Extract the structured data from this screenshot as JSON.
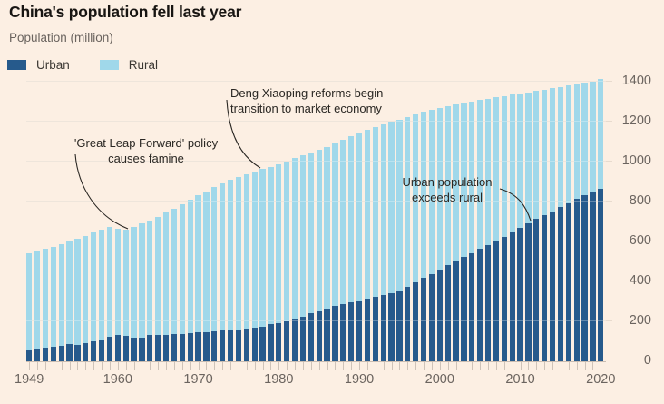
{
  "header": {
    "title": "China's population fell last year",
    "subtitle": "Population (million)"
  },
  "legend": {
    "items": [
      {
        "label": "Urban",
        "color": "#265a8c"
      },
      {
        "label": "Rural",
        "color": "#a0d8ea"
      }
    ]
  },
  "annotations": {
    "great_leap": {
      "line1": "'Great Leap Forward' policy",
      "line2": "causes famine"
    },
    "deng": {
      "line1": "Deng Xiaoping reforms begin",
      "line2": "transition to market economy"
    },
    "urban_exceeds": {
      "line1": "Urban population",
      "line2": "exceeds rural"
    }
  },
  "axis": {
    "y_ticks": [
      0,
      200,
      400,
      600,
      800,
      1000,
      1200,
      1400
    ],
    "x_labels": [
      1949,
      1960,
      1970,
      1980,
      1990,
      2000,
      2010,
      2020
    ]
  },
  "chart_data": {
    "type": "bar",
    "stacked": true,
    "title": "China's population fell last year",
    "ylabel": "Population (million)",
    "ylim": [
      0,
      1400
    ],
    "grid": true,
    "legend_position": "top-left",
    "x": [
      1949,
      1950,
      1951,
      1952,
      1953,
      1954,
      1955,
      1956,
      1957,
      1958,
      1959,
      1960,
      1961,
      1962,
      1963,
      1964,
      1965,
      1966,
      1967,
      1968,
      1969,
      1970,
      1971,
      1972,
      1973,
      1974,
      1975,
      1976,
      1977,
      1978,
      1979,
      1980,
      1981,
      1982,
      1983,
      1984,
      1985,
      1986,
      1987,
      1988,
      1989,
      1990,
      1991,
      1992,
      1993,
      1994,
      1995,
      1996,
      1997,
      1998,
      1999,
      2000,
      2001,
      2002,
      2003,
      2004,
      2005,
      2006,
      2007,
      2008,
      2009,
      2010,
      2011,
      2012,
      2013,
      2014,
      2015,
      2016,
      2017,
      2018,
      2019,
      2020
    ],
    "series": [
      {
        "name": "Urban",
        "color": "#265a8c",
        "values": [
          58,
          62,
          66,
          72,
          78,
          87,
          83,
          92,
          99,
          107,
          124,
          131,
          127,
          117,
          116,
          130,
          130,
          133,
          135,
          138,
          141,
          144,
          147,
          149,
          153,
          156,
          160,
          163,
          167,
          172,
          185,
          191,
          202,
          215,
          223,
          240,
          251,
          264,
          277,
          287,
          295,
          302,
          312,
          322,
          332,
          342,
          352,
          373,
          394,
          416,
          437,
          459,
          481,
          502,
          524,
          543,
          562,
          583,
          606,
          624,
          645,
          670,
          691,
          712,
          731,
          749,
          771,
          793,
          813,
          831,
          848,
          862
        ]
      },
      {
        "name": "Rural",
        "color": "#a0d8ea",
        "values": [
          484,
          490,
          497,
          503,
          510,
          516,
          532,
          536,
          548,
          553,
          548,
          531,
          532,
          556,
          576,
          575,
          595,
          612,
          629,
          647,
          666,
          686,
          705,
          723,
          739,
          753,
          764,
          774,
          783,
          791,
          790,
          796,
          799,
          802,
          807,
          804,
          808,
          811,
          816,
          823,
          832,
          841,
          846,
          850,
          853,
          857,
          859,
          851,
          842,
          832,
          821,
          808,
          795,
          783,
          768,
          757,
          746,
          731,
          715,
          704,
          690,
          671,
          656,
          642,
          630,
          619,
          604,
          590,
          577,
          564,
          552,
          550
        ]
      }
    ]
  }
}
